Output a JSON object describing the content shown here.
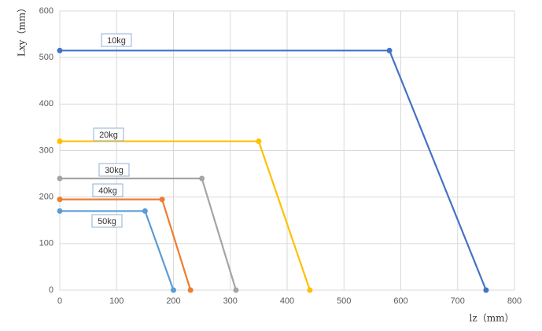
{
  "chart_data": {
    "type": "line",
    "x_label": "lz（mm）",
    "y_label": "Lxy（mm）",
    "xlim": [
      0,
      800
    ],
    "xticks": [
      0,
      100,
      200,
      300,
      400,
      500,
      600,
      700,
      800
    ],
    "ylim": [
      0,
      600
    ],
    "yticks": [
      0,
      100,
      200,
      300,
      400,
      500,
      600
    ],
    "grid": true,
    "series": [
      {
        "name": "10kg",
        "color": "#4472c4",
        "x": [
          0,
          580,
          750
        ],
        "values": [
          515,
          515,
          0
        ]
      },
      {
        "name": "20kg",
        "color": "#ffc000",
        "x": [
          0,
          350,
          440
        ],
        "values": [
          320,
          320,
          0
        ]
      },
      {
        "name": "30kg",
        "color": "#a5a5a5",
        "x": [
          0,
          250,
          310
        ],
        "values": [
          240,
          240,
          0
        ]
      },
      {
        "name": "40kg",
        "color": "#ed7d31",
        "x": [
          0,
          180,
          230
        ],
        "values": [
          195,
          195,
          0
        ]
      },
      {
        "name": "50kg",
        "color": "#5b9bd5",
        "x": [
          0,
          150,
          200
        ],
        "values": [
          170,
          170,
          0
        ]
      }
    ]
  }
}
